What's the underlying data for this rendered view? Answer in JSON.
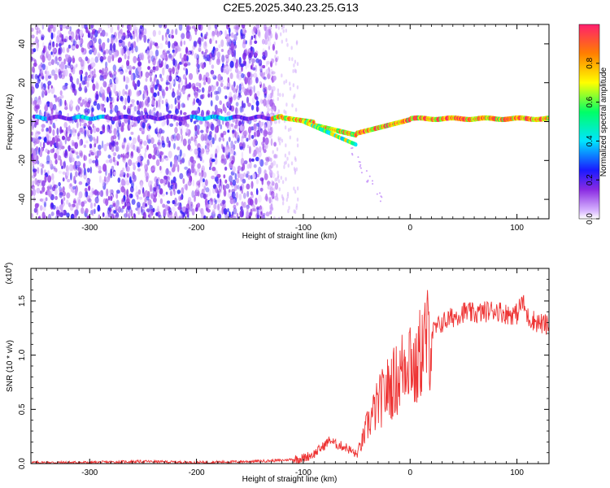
{
  "title": "C2E5.2025.340.23.25.G13",
  "chart_data": [
    {
      "type": "heatmap",
      "name": "spectrogram",
      "xlabel": "Height of straight line (km)",
      "ylabel": "Frequency (Hz)",
      "xlim": [
        -355,
        130
      ],
      "ylim": [
        -50,
        50
      ],
      "xticks": [
        -300,
        -200,
        -100,
        0,
        100
      ],
      "xtick_labels": [
        "-300",
        "-200",
        "-100",
        "0",
        "100"
      ],
      "yticks": [
        -40,
        -20,
        0,
        20,
        40
      ],
      "ytick_labels": [
        "-40",
        "-20",
        "0",
        "20",
        "40"
      ],
      "colorbar": {
        "label": "Normalized spectral amplitude",
        "range": [
          0.0,
          1.0
        ],
        "ticks": [
          0.0,
          0.2,
          0.4,
          0.6,
          0.8
        ],
        "tick_labels": [
          "0.0",
          "0.2",
          "0.4",
          "0.6",
          "0.8"
        ]
      },
      "features": [
        {
          "name": "main-signal-band",
          "x_range": [
            -350,
            130
          ],
          "center_freq_hz": 2
        },
        {
          "name": "descending-branch",
          "x_range": [
            -100,
            -50
          ],
          "freq_range_hz": [
            0,
            -12
          ]
        }
      ]
    },
    {
      "type": "line",
      "name": "snr",
      "xlabel": "Height of straight line (km)",
      "ylabel": "SNR (10 * v/v)",
      "scale_label": "(x10",
      "scale_exponent": "4",
      "xlim": [
        -355,
        130
      ],
      "ylim": [
        0,
        1.8
      ],
      "xticks": [
        -300,
        -200,
        -100,
        0,
        100
      ],
      "xtick_labels": [
        "-300",
        "-200",
        "-100",
        "0",
        "100"
      ],
      "yticks": [
        0.0,
        0.5,
        1.0,
        1.5
      ],
      "ytick_labels": [
        "0.0",
        "0.5",
        "1.0",
        "1.5"
      ],
      "color": "#ee3333",
      "series": [
        {
          "name": "snr",
          "x": [
            -355,
            -300,
            -250,
            -200,
            -150,
            -120,
            -100,
            -90,
            -80,
            -75,
            -70,
            -60,
            -50,
            -45,
            -40,
            -30,
            -20,
            -10,
            -5,
            0,
            5,
            10,
            20,
            30,
            40,
            50,
            60,
            70,
            80,
            90,
            100,
            105,
            110,
            120,
            130
          ],
          "values": [
            0.01,
            0.01,
            0.02,
            0.01,
            0.02,
            0.03,
            0.05,
            0.09,
            0.17,
            0.22,
            0.18,
            0.15,
            0.08,
            0.2,
            0.35,
            0.55,
            0.7,
            0.8,
            0.95,
            1.05,
            0.8,
            1.05,
            1.2,
            1.3,
            1.35,
            1.4,
            1.38,
            1.4,
            1.42,
            1.38,
            1.38,
            1.5,
            1.35,
            1.3,
            1.27
          ]
        }
      ]
    }
  ]
}
